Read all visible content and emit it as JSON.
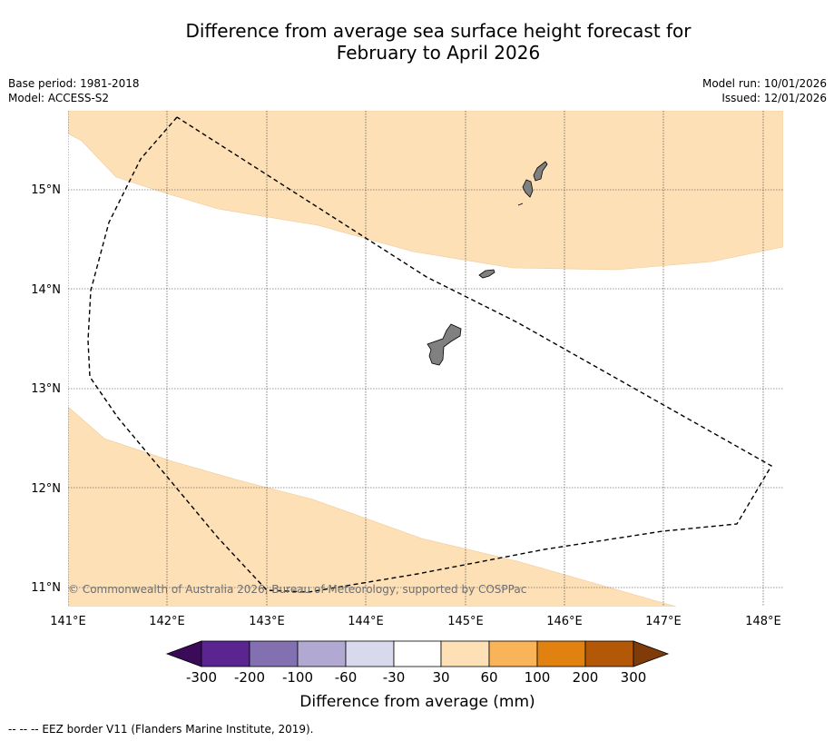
{
  "title": {
    "line1": "Difference from average sea surface height forecast for",
    "line2": "February to April 2026"
  },
  "meta": {
    "base_period": "Base period: 1981-2018",
    "model": "Model: ACCESS-S2",
    "model_run": "Model run: 10/01/2026",
    "issued": "Issued: 12/01/2026"
  },
  "map": {
    "lon_labels": [
      "141°E",
      "142°E",
      "143°E",
      "144°E",
      "145°E",
      "146°E",
      "147°E",
      "148°E"
    ],
    "lat_labels": [
      "15°N",
      "14°N",
      "13°N",
      "12°N",
      "11°N"
    ],
    "copyright": "© Commonwealth of Australia 2026, Bureau of Meteorology, supported by COSPPac",
    "shading_color": "#fde0b6",
    "land_color": "#808080"
  },
  "colorbar": {
    "labels": [
      "-300",
      "-200",
      "-100",
      "-60",
      "-30",
      "30",
      "60",
      "100",
      "200",
      "300"
    ],
    "colors": [
      "#3b0a59",
      "#5a2590",
      "#8270b0",
      "#b1a9d2",
      "#d9d9ee",
      "#ffffff",
      "#fde0b6",
      "#f9b45a",
      "#e1810f",
      "#b35806",
      "#7f3b08"
    ],
    "title": "Difference from average (mm)"
  },
  "footer": "--  --  -- EEZ border V11 (Flanders Marine Institute, 2019)."
}
